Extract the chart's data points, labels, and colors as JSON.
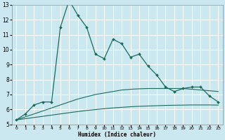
{
  "xlabel": "Humidex (Indice chaleur)",
  "background_color": "#cbe8f0",
  "grid_color": "#ffffff",
  "line_color": "#1a6b5a",
  "xlim": [
    -0.5,
    23.5
  ],
  "ylim": [
    5,
    13
  ],
  "yticks": [
    5,
    6,
    7,
    8,
    9,
    10,
    11,
    12,
    13
  ],
  "xticks": [
    0,
    1,
    2,
    3,
    4,
    5,
    6,
    7,
    8,
    9,
    10,
    11,
    12,
    13,
    14,
    15,
    16,
    17,
    18,
    19,
    20,
    21,
    22,
    23
  ],
  "curve1_x": [
    0,
    1,
    2,
    3,
    4,
    5,
    6,
    7,
    8,
    9,
    10,
    11,
    12,
    13,
    14,
    15,
    16,
    17,
    18,
    19,
    20,
    21,
    22,
    23
  ],
  "curve1_y": [
    5.3,
    5.7,
    6.3,
    6.5,
    6.5,
    11.5,
    13.3,
    12.3,
    11.5,
    9.7,
    9.4,
    10.7,
    10.4,
    9.5,
    9.7,
    8.9,
    8.3,
    7.5,
    7.2,
    7.4,
    7.5,
    7.5,
    6.9,
    6.5
  ],
  "curve2_x": [
    0,
    1,
    2,
    3,
    4,
    5,
    6,
    7,
    8,
    9,
    10,
    11,
    12,
    13,
    14,
    15,
    16,
    17,
    18,
    19,
    20,
    21,
    22,
    23
  ],
  "curve2_y": [
    5.3,
    5.5,
    5.7,
    5.9,
    6.1,
    6.3,
    6.5,
    6.7,
    6.85,
    7.0,
    7.1,
    7.2,
    7.3,
    7.35,
    7.38,
    7.4,
    7.4,
    7.4,
    7.4,
    7.4,
    7.35,
    7.3,
    7.25,
    7.2
  ],
  "curve3_x": [
    0,
    1,
    2,
    3,
    4,
    5,
    6,
    7,
    8,
    9,
    10,
    11,
    12,
    13,
    14,
    15,
    16,
    17,
    18,
    19,
    20,
    21,
    22,
    23
  ],
  "curve3_y": [
    5.3,
    5.38,
    5.46,
    5.54,
    5.62,
    5.7,
    5.78,
    5.86,
    5.93,
    5.99,
    6.05,
    6.1,
    6.14,
    6.18,
    6.21,
    6.23,
    6.25,
    6.27,
    6.28,
    6.29,
    6.3,
    6.3,
    6.3,
    6.29
  ]
}
